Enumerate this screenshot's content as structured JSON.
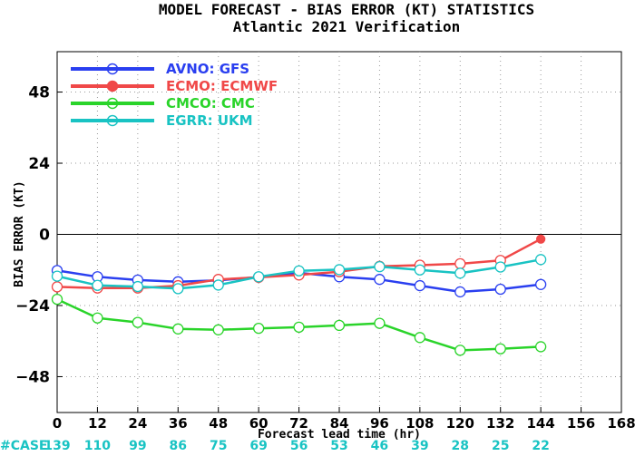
{
  "chart_data": {
    "type": "line",
    "title": "MODEL FORECAST - BIAS ERROR (KT) STATISTICS",
    "subtitle": "Atlantic 2021 Verification",
    "xlabel": "Forecast lead time (hr)",
    "ylabel": "BIAS ERROR (KT)",
    "x_ticks": [
      0,
      12,
      24,
      36,
      48,
      60,
      72,
      84,
      96,
      108,
      120,
      132,
      144,
      156,
      168
    ],
    "y_ticks": [
      48,
      24,
      0,
      -24,
      -48
    ],
    "xlim": [
      0,
      168
    ],
    "ylim": [
      -60,
      60
    ],
    "zero_line": true,
    "grid": "dotted",
    "legend_placement": "top-left",
    "case_label": "#CASE",
    "case_color": "#19c3c3",
    "case_counts": [
      139,
      110,
      99,
      86,
      75,
      69,
      56,
      53,
      46,
      39,
      28,
      25,
      22
    ],
    "series": [
      {
        "name": "AVNO: GFS",
        "color": "#2a3ff0",
        "x": [
          0,
          12,
          24,
          36,
          48,
          60,
          72,
          84,
          96,
          108,
          120,
          132,
          144
        ],
        "values": [
          -12.2,
          -14.3,
          -15.4,
          -16.0,
          -15.5,
          -14.4,
          -13.0,
          -14.3,
          -15.2,
          -17.3,
          -19.4,
          -18.5,
          -16.9
        ]
      },
      {
        "name": "ECMO: ECMWF",
        "color": "#f04848",
        "x": [
          0,
          12,
          24,
          36,
          48,
          60,
          72,
          84,
          96,
          108,
          120,
          132,
          144
        ],
        "values": [
          -17.7,
          -18.1,
          -18.1,
          -17.3,
          -15.2,
          -14.5,
          -13.7,
          -12.6,
          -10.8,
          -10.4,
          -9.9,
          -8.8,
          -1.6
        ]
      },
      {
        "name": "CMCO: CMC",
        "color": "#2ad42a",
        "x": [
          0,
          12,
          24,
          36,
          48,
          60,
          72,
          84,
          96,
          108,
          120,
          132,
          144
        ],
        "values": [
          -21.9,
          -28.2,
          -29.7,
          -31.9,
          -32.2,
          -31.7,
          -31.3,
          -30.7,
          -30.0,
          -34.8,
          -39.1,
          -38.6,
          -37.9
        ]
      },
      {
        "name": "EGRR: UKM",
        "color": "#19c3c3",
        "x": [
          0,
          12,
          24,
          36,
          48,
          60,
          72,
          84,
          96,
          108,
          120,
          132,
          144
        ],
        "values": [
          -14.1,
          -17.2,
          -17.6,
          -18.3,
          -17.1,
          -14.3,
          -12.3,
          -11.9,
          -10.9,
          -12.0,
          -13.1,
          -11.0,
          -8.5
        ]
      }
    ]
  }
}
